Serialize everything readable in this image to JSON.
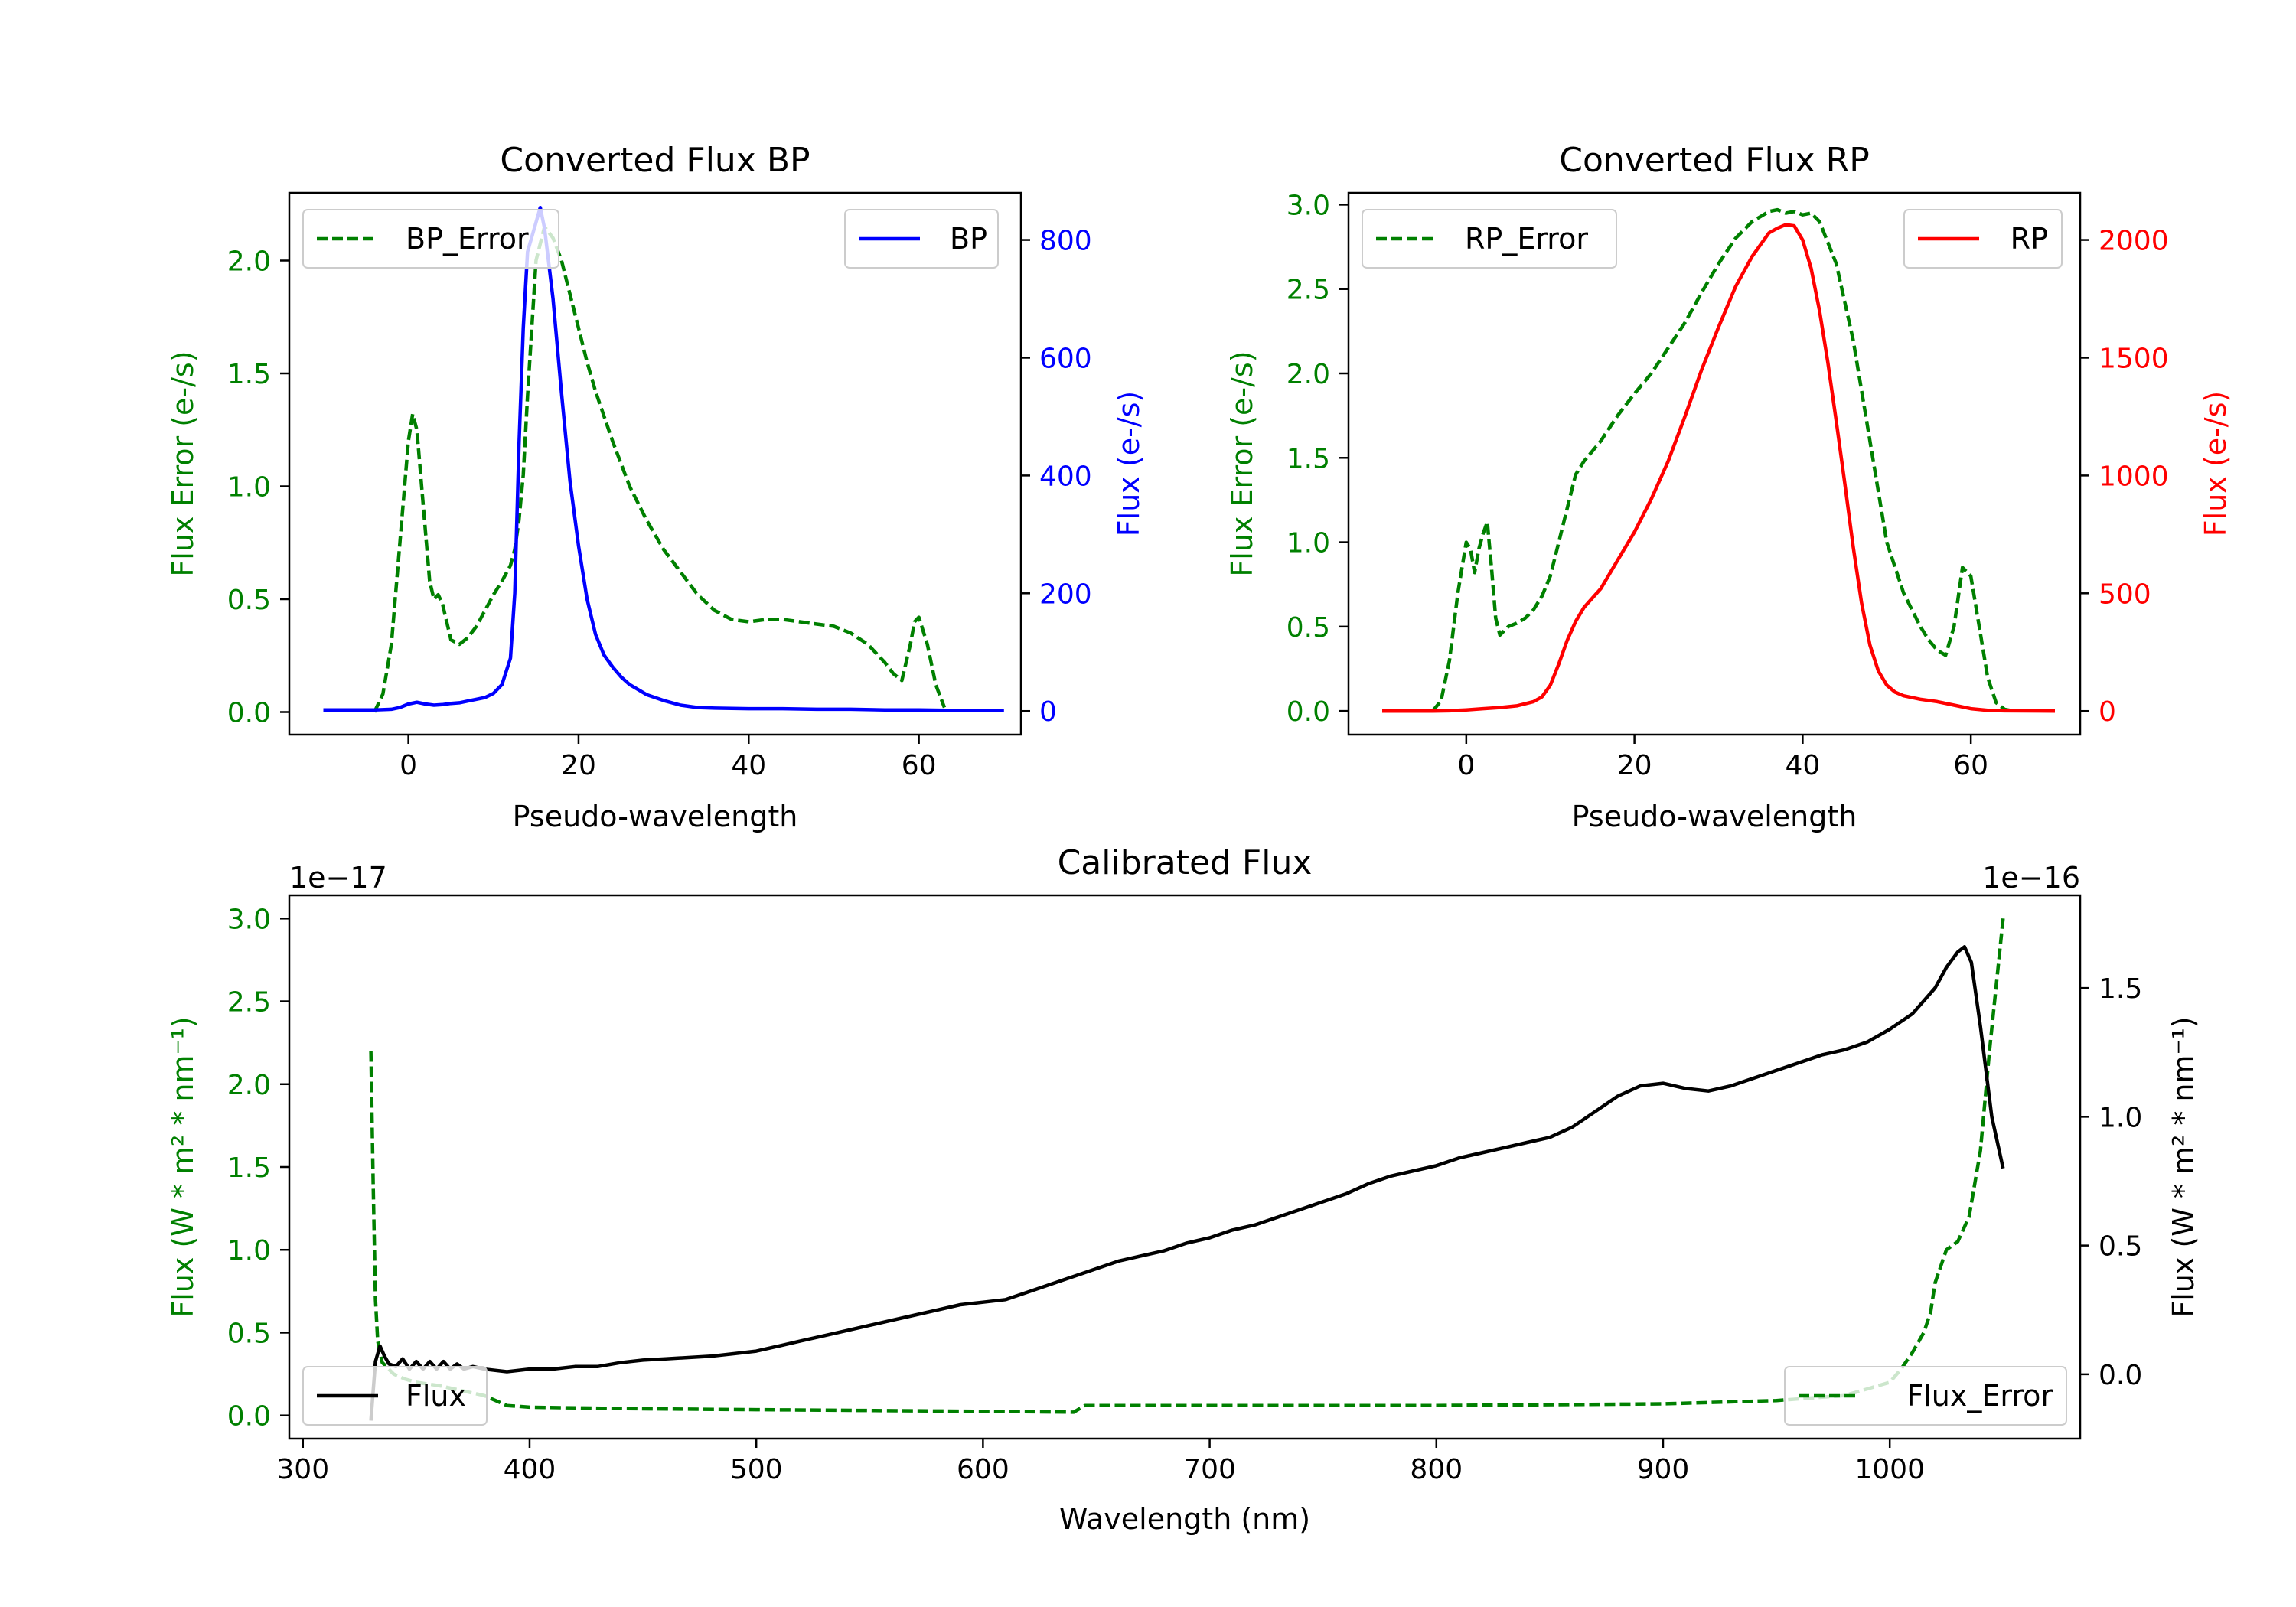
{
  "chart_data": [
    {
      "type": "line",
      "title": "Converted Flux BP",
      "xlabel": "Pseudo-wavelength",
      "ylabel_left": "Flux Error (e-/s)",
      "ylabel_right": "Flux (e-/s)",
      "xlim": [
        -14,
        72
      ],
      "xticks": [
        0,
        20,
        40,
        60
      ],
      "ylim_left": [
        -0.1,
        2.3
      ],
      "yticks_left": [
        "0.0",
        "0.5",
        "1.0",
        "1.5",
        "2.0"
      ],
      "ylim_right": [
        -40,
        880
      ],
      "yticks_right": [
        "0",
        "200",
        "400",
        "600",
        "800"
      ],
      "left_color": "#008000",
      "right_color": "#0000ff",
      "legend_left": {
        "label": "BP_Error",
        "placement": "top-left"
      },
      "legend_right": {
        "label": "BP",
        "placement": "top-right"
      },
      "series_left": {
        "name": "BP_Error",
        "x": [
          -4,
          -3,
          -2,
          -1,
          0,
          0.5,
          1,
          2,
          2.5,
          3,
          3.5,
          4,
          5,
          6,
          7,
          8,
          9,
          10,
          11,
          12,
          12.5,
          13,
          13.5,
          14,
          15,
          16,
          17,
          18,
          19,
          20,
          21,
          22,
          24,
          26,
          28,
          30,
          32,
          34,
          36,
          38,
          40,
          42,
          44,
          46,
          48,
          50,
          52,
          54,
          56,
          57,
          58,
          59,
          59.5,
          60,
          61,
          62,
          63
        ],
        "y": [
          0.0,
          0.08,
          0.3,
          0.75,
          1.2,
          1.32,
          1.25,
          0.8,
          0.58,
          0.5,
          0.52,
          0.48,
          0.32,
          0.3,
          0.33,
          0.38,
          0.45,
          0.52,
          0.58,
          0.65,
          0.72,
          0.85,
          1.05,
          1.4,
          2.0,
          2.15,
          2.1,
          2.0,
          1.85,
          1.7,
          1.55,
          1.42,
          1.2,
          1.0,
          0.85,
          0.72,
          0.62,
          0.52,
          0.45,
          0.41,
          0.4,
          0.41,
          0.41,
          0.4,
          0.39,
          0.38,
          0.35,
          0.3,
          0.22,
          0.17,
          0.14,
          0.3,
          0.4,
          0.42,
          0.3,
          0.12,
          0.02
        ]
      },
      "series_right": {
        "name": "BP",
        "x": [
          -10,
          -6,
          -4,
          -2,
          -1,
          0,
          1,
          2,
          3,
          4,
          5,
          6,
          7,
          8,
          9,
          10,
          11,
          12,
          12.5,
          13,
          13.5,
          14,
          15,
          15.5,
          16,
          17,
          18,
          19,
          20,
          21,
          22,
          23,
          24,
          25,
          26,
          28,
          30,
          32,
          34,
          36,
          40,
          44,
          48,
          52,
          56,
          60,
          64,
          70
        ],
        "y": [
          2,
          2,
          2,
          3,
          6,
          12,
          15,
          12,
          10,
          11,
          13,
          14,
          17,
          20,
          23,
          30,
          45,
          90,
          200,
          450,
          650,
          780,
          830,
          855,
          820,
          700,
          540,
          390,
          280,
          190,
          130,
          95,
          75,
          58,
          45,
          28,
          18,
          10,
          6,
          5,
          4,
          4,
          3,
          3,
          2,
          2,
          1,
          1
        ]
      }
    },
    {
      "type": "line",
      "title": "Converted Flux RP",
      "xlabel": "Pseudo-wavelength",
      "ylabel_left": "Flux Error (e-/s)",
      "ylabel_right": "Flux (e-/s)",
      "xlim": [
        -14,
        73
      ],
      "xticks": [
        0,
        20,
        40,
        60
      ],
      "ylim_left": [
        -0.14,
        3.07
      ],
      "yticks_left": [
        "0.0",
        "0.5",
        "1.0",
        "1.5",
        "2.0",
        "2.5",
        "3.0"
      ],
      "ylim_right": [
        -100,
        2200
      ],
      "yticks_right": [
        "0",
        "500",
        "1000",
        "1500",
        "2000"
      ],
      "left_color": "#008000",
      "right_color": "#ff0000",
      "legend_left": {
        "label": "RP_Error",
        "placement": "top-left"
      },
      "legend_right": {
        "label": "RP",
        "placement": "top-right"
      },
      "series_left": {
        "name": "RP_Error",
        "x": [
          -4,
          -3,
          -2,
          -1,
          0,
          0.5,
          1,
          1.5,
          2,
          2.5,
          3,
          3.5,
          4,
          5,
          6,
          7,
          8,
          9,
          10,
          11,
          12,
          13,
          14,
          16,
          18,
          20,
          22,
          24,
          26,
          28,
          30,
          32,
          34,
          35,
          36,
          37,
          38,
          39,
          40,
          41,
          42,
          44,
          46,
          48,
          50,
          52,
          53,
          54,
          55,
          56,
          57,
          58,
          59,
          60,
          61,
          62,
          63,
          64,
          65
        ],
        "y": [
          0.0,
          0.06,
          0.3,
          0.7,
          1.0,
          0.96,
          0.82,
          0.96,
          1.05,
          1.12,
          0.85,
          0.55,
          0.45,
          0.5,
          0.52,
          0.55,
          0.6,
          0.68,
          0.8,
          1.0,
          1.2,
          1.4,
          1.48,
          1.6,
          1.75,
          1.88,
          2.0,
          2.15,
          2.3,
          2.48,
          2.65,
          2.8,
          2.9,
          2.93,
          2.96,
          2.97,
          2.95,
          2.96,
          2.94,
          2.95,
          2.9,
          2.65,
          2.2,
          1.6,
          1.0,
          0.7,
          0.6,
          0.5,
          0.42,
          0.36,
          0.33,
          0.5,
          0.85,
          0.8,
          0.5,
          0.2,
          0.05,
          0.01,
          0.0
        ]
      },
      "series_right": {
        "name": "RP",
        "x": [
          -10,
          -4,
          -2,
          0,
          2,
          4,
          6,
          8,
          9,
          10,
          11,
          12,
          13,
          14,
          16,
          18,
          20,
          22,
          24,
          26,
          28,
          30,
          32,
          34,
          36,
          37,
          38,
          39,
          40,
          41,
          42,
          43,
          44,
          45,
          46,
          47,
          48,
          49,
          50,
          51,
          52,
          54,
          56,
          58,
          60,
          62,
          64,
          70
        ],
        "y": [
          0,
          0,
          1,
          5,
          10,
          15,
          22,
          40,
          60,
          110,
          200,
          300,
          380,
          440,
          520,
          640,
          760,
          900,
          1060,
          1250,
          1450,
          1630,
          1800,
          1930,
          2030,
          2050,
          2065,
          2060,
          2000,
          1880,
          1700,
          1480,
          1230,
          970,
          700,
          460,
          280,
          170,
          110,
          80,
          65,
          50,
          40,
          25,
          10,
          3,
          1,
          0
        ]
      }
    },
    {
      "type": "line",
      "title": "Calibrated Flux",
      "xlabel": "Wavelength (nm)",
      "ylabel_left": "Flux (W * m² * nm⁻¹)",
      "ylabel_right": "Flux (W * m² * nm⁻¹)",
      "offset_left": "1e−17",
      "offset_right": "1e−16",
      "xlim": [
        294,
        1084
      ],
      "xticks": [
        300,
        400,
        500,
        600,
        700,
        800,
        900,
        1000
      ],
      "ylim_left": [
        -0.14,
        3.14
      ],
      "yticks_left": [
        "0.0",
        "0.5",
        "1.0",
        "1.5",
        "2.0",
        "2.5",
        "3.0"
      ],
      "ylim_right": [
        -0.25,
        1.86
      ],
      "yticks_right": [
        "0.0",
        "0.5",
        "1.0",
        "1.5"
      ],
      "left_color": "#008000",
      "right_color": "#000000",
      "legend_left": {
        "label": "Flux",
        "placement": "lower-left"
      },
      "legend_right": {
        "label": "Flux_Error",
        "placement": "lower-right"
      },
      "series_flux": {
        "name": "Flux",
        "x": [
          330,
          332,
          334,
          336,
          338,
          341,
          344,
          347,
          350,
          353,
          356,
          359,
          362,
          365,
          368,
          371,
          375,
          380,
          390,
          400,
          410,
          420,
          430,
          440,
          450,
          460,
          470,
          480,
          490,
          500,
          510,
          520,
          530,
          540,
          550,
          560,
          570,
          580,
          590,
          600,
          610,
          620,
          630,
          640,
          650,
          660,
          670,
          680,
          690,
          700,
          710,
          720,
          730,
          740,
          750,
          760,
          770,
          780,
          790,
          800,
          810,
          820,
          830,
          840,
          850,
          860,
          870,
          880,
          890,
          900,
          910,
          920,
          930,
          940,
          950,
          960,
          970,
          980,
          990,
          1000,
          1010,
          1020,
          1025,
          1030,
          1033,
          1036,
          1040,
          1045,
          1050
        ],
        "y": [
          -0.18,
          0.05,
          0.11,
          0.07,
          0.04,
          0.03,
          0.06,
          0.02,
          0.05,
          0.02,
          0.05,
          0.02,
          0.05,
          0.02,
          0.04,
          0.02,
          0.03,
          0.02,
          0.01,
          0.02,
          0.02,
          0.03,
          0.03,
          0.045,
          0.055,
          0.06,
          0.065,
          0.07,
          0.08,
          0.09,
          0.11,
          0.13,
          0.15,
          0.17,
          0.19,
          0.21,
          0.23,
          0.25,
          0.27,
          0.28,
          0.29,
          0.32,
          0.35,
          0.38,
          0.41,
          0.44,
          0.46,
          0.48,
          0.51,
          0.53,
          0.56,
          0.58,
          0.61,
          0.64,
          0.67,
          0.7,
          0.74,
          0.77,
          0.79,
          0.81,
          0.84,
          0.86,
          0.88,
          0.9,
          0.92,
          0.96,
          1.02,
          1.08,
          1.12,
          1.13,
          1.11,
          1.1,
          1.12,
          1.15,
          1.18,
          1.21,
          1.24,
          1.26,
          1.29,
          1.34,
          1.4,
          1.5,
          1.58,
          1.64,
          1.66,
          1.6,
          1.35,
          1.0,
          0.8
        ]
      },
      "series_error": {
        "name": "Flux_Error",
        "x": [
          330,
          331,
          332,
          333,
          335,
          340,
          345,
          350,
          360,
          370,
          380,
          385,
          390,
          400,
          450,
          500,
          550,
          600,
          640,
          645,
          700,
          800,
          900,
          950,
          980,
          990,
          1000,
          1005,
          1010,
          1015,
          1018,
          1020,
          1025,
          1030,
          1035,
          1040,
          1044,
          1047,
          1050
        ],
        "y": [
          2.2,
          1.4,
          0.7,
          0.45,
          0.32,
          0.25,
          0.22,
          0.2,
          0.18,
          0.15,
          0.12,
          0.09,
          0.06,
          0.05,
          0.04,
          0.035,
          0.03,
          0.025,
          0.02,
          0.06,
          0.06,
          0.06,
          0.07,
          0.09,
          0.12,
          0.16,
          0.2,
          0.28,
          0.38,
          0.5,
          0.62,
          0.8,
          1.0,
          1.05,
          1.2,
          1.6,
          2.2,
          2.6,
          3.0
        ]
      }
    }
  ]
}
